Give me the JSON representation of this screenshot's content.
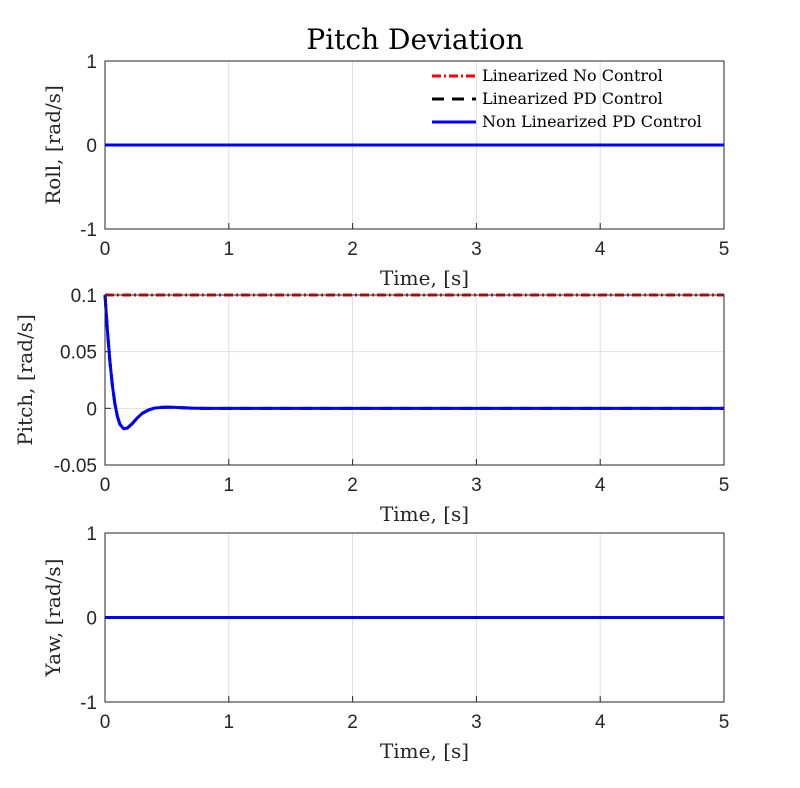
{
  "chart_data": {
    "type": "line",
    "title": "Pitch Deviation",
    "legend": {
      "placement": "top-right",
      "entries": [
        {
          "label": "Linearized No Control",
          "color": "#ff0000",
          "style": "dash-dot"
        },
        {
          "label": "Linearized PD Control",
          "color": "#000000",
          "style": "dashed"
        },
        {
          "label": "Non Linearized PD Control",
          "color": "#0000ff",
          "style": "solid"
        }
      ]
    },
    "grid": true,
    "subplots": [
      {
        "id": "roll",
        "xlabel": "Time, [s]",
        "ylabel": "Roll, [rad/s]",
        "xlim": [
          0,
          5
        ],
        "ylim": [
          -1,
          1
        ],
        "xticks": [
          0,
          1,
          2,
          3,
          4,
          5
        ],
        "xtick_labels": [
          "0",
          "1",
          "2",
          "3",
          "4",
          "5"
        ],
        "yticks": [
          -1,
          0,
          1
        ],
        "ytick_labels": [
          "-1",
          "0",
          "1"
        ],
        "series": [
          {
            "name": "Linearized No Control",
            "color": "#ff0000",
            "style": "dash-dot",
            "x": [
              0,
              5
            ],
            "y": [
              0,
              0
            ]
          },
          {
            "name": "Linearized PD Control",
            "color": "#000000",
            "style": "dashed",
            "x": [
              0,
              5
            ],
            "y": [
              0,
              0
            ]
          },
          {
            "name": "Non Linearized PD Control",
            "color": "#0000ff",
            "style": "solid",
            "x": [
              0,
              5
            ],
            "y": [
              0,
              0
            ]
          }
        ]
      },
      {
        "id": "pitch",
        "xlabel": "Time, [s]",
        "ylabel": "Pitch, [rad/s]",
        "xlim": [
          0,
          5
        ],
        "ylim": [
          -0.05,
          0.1
        ],
        "xticks": [
          0,
          1,
          2,
          3,
          4,
          5
        ],
        "xtick_labels": [
          "0",
          "1",
          "2",
          "3",
          "4",
          "5"
        ],
        "yticks": [
          -0.05,
          0,
          0.05,
          0.1
        ],
        "ytick_labels": [
          "-0.05",
          "0",
          "0.05",
          "0.1"
        ],
        "series": [
          {
            "name": "Linearized No Control",
            "color": "#ff0000",
            "style": "dash-dot",
            "x": [
              0,
              5
            ],
            "y": [
              0.1,
              0.1
            ]
          },
          {
            "name": "Linearized PD Control",
            "color": "#000000",
            "style": "dashed",
            "x": [
              0,
              0.02,
              0.04,
              0.06,
              0.08,
              0.1,
              0.12,
              0.15,
              0.18,
              0.22,
              0.26,
              0.3,
              0.35,
              0.4,
              0.45,
              0.5,
              0.55,
              0.6,
              0.7,
              0.8,
              1.0,
              2.0,
              3.0,
              4.0,
              5.0
            ],
            "y": [
              0.1,
              0.068,
              0.041,
              0.02,
              0.004,
              -0.007,
              -0.014,
              -0.018,
              -0.0175,
              -0.0135,
              -0.0085,
              -0.0045,
              -0.0015,
              0.0002,
              0.0008,
              0.001,
              0.0009,
              0.0006,
              0.0002,
              0,
              0,
              0,
              0,
              0,
              0
            ]
          },
          {
            "name": "Non Linearized PD Control",
            "color": "#0000ff",
            "style": "solid",
            "x": [
              0,
              0.02,
              0.04,
              0.06,
              0.08,
              0.1,
              0.12,
              0.15,
              0.18,
              0.22,
              0.26,
              0.3,
              0.35,
              0.4,
              0.45,
              0.5,
              0.55,
              0.6,
              0.7,
              0.8,
              1.0,
              2.0,
              3.0,
              4.0,
              5.0
            ],
            "y": [
              0.1,
              0.068,
              0.041,
              0.02,
              0.004,
              -0.007,
              -0.014,
              -0.018,
              -0.0175,
              -0.0135,
              -0.0085,
              -0.0045,
              -0.0015,
              0.0002,
              0.0008,
              0.001,
              0.0009,
              0.0006,
              0.0002,
              0,
              0,
              0,
              0,
              0,
              0
            ]
          }
        ]
      },
      {
        "id": "yaw",
        "xlabel": "Time, [s]",
        "ylabel": "Yaw, [rad/s]",
        "xlim": [
          0,
          5
        ],
        "ylim": [
          -1,
          1
        ],
        "xticks": [
          0,
          1,
          2,
          3,
          4,
          5
        ],
        "xtick_labels": [
          "0",
          "1",
          "2",
          "3",
          "4",
          "5"
        ],
        "yticks": [
          -1,
          0,
          1
        ],
        "ytick_labels": [
          "-1",
          "0",
          "1"
        ],
        "series": [
          {
            "name": "Linearized No Control",
            "color": "#ff0000",
            "style": "dash-dot",
            "x": [
              0,
              5
            ],
            "y": [
              0,
              0
            ]
          },
          {
            "name": "Linearized PD Control",
            "color": "#000000",
            "style": "dashed",
            "x": [
              0,
              5
            ],
            "y": [
              0,
              0
            ]
          },
          {
            "name": "Non Linearized PD Control",
            "color": "#0000ff",
            "style": "solid",
            "x": [
              0,
              5
            ],
            "y": [
              0,
              0
            ]
          }
        ]
      }
    ]
  }
}
